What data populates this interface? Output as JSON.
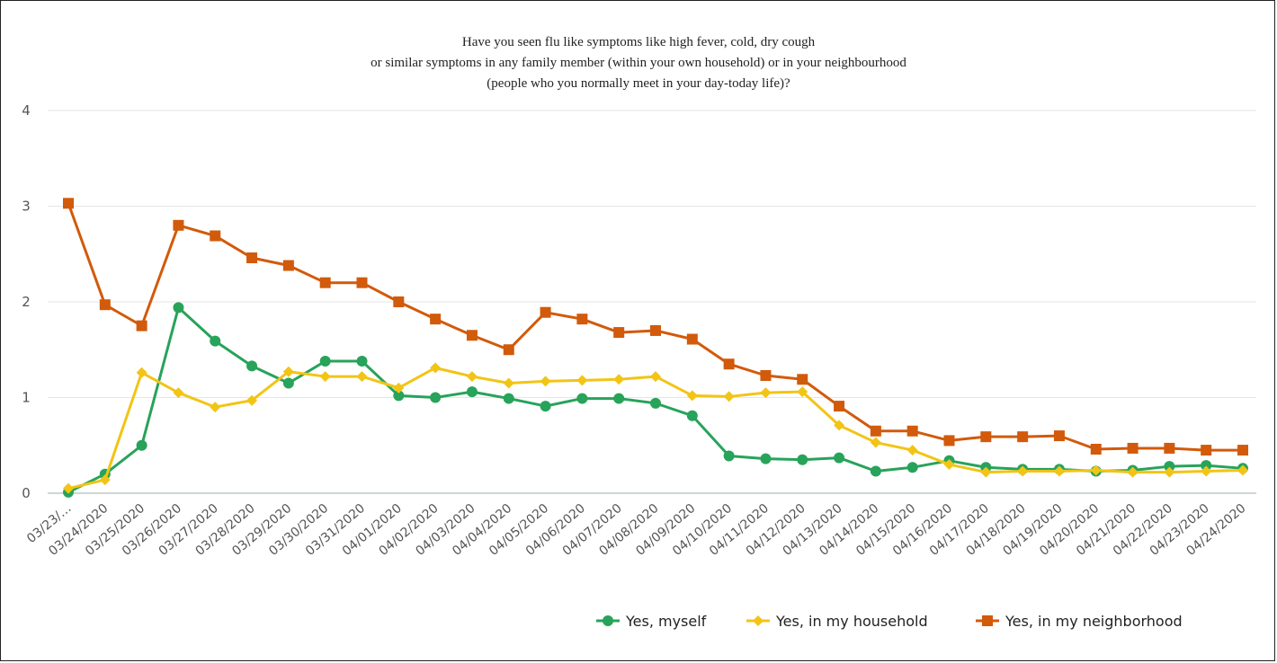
{
  "chart_data": {
    "type": "line",
    "title": [
      "Have you seen flu like symptoms like high fever, cold, dry cough",
      "or similar symptoms in any family member (within your own household) or in your neighbourhood",
      "(people who you normally meet in your day-today life)?"
    ],
    "categories": [
      "03/23/…",
      "03/24/2020",
      "03/25/2020",
      "03/26/2020",
      "03/27/2020",
      "03/28/2020",
      "03/29/2020",
      "03/30/2020",
      "03/31/2020",
      "04/01/2020",
      "04/02/2020",
      "04/03/2020",
      "04/04/2020",
      "04/05/2020",
      "04/06/2020",
      "04/07/2020",
      "04/08/2020",
      "04/09/2020",
      "04/10/2020",
      "04/11/2020",
      "04/12/2020",
      "04/13/2020",
      "04/14/2020",
      "04/15/2020",
      "04/16/2020",
      "04/17/2020",
      "04/18/2020",
      "04/19/2020",
      "04/20/2020",
      "04/21/2020",
      "04/22/2020",
      "04/23/2020",
      "04/24/2020"
    ],
    "yticks": [
      "0",
      "1",
      "2",
      "3",
      "4"
    ],
    "ylim": [
      0,
      4
    ],
    "grid": true,
    "legend_position": "bottom-right",
    "series": [
      {
        "name": "Yes, myself",
        "color": "#27a35a",
        "marker": "circle",
        "values": [
          0.01,
          0.2,
          0.5,
          1.94,
          1.59,
          1.33,
          1.15,
          1.38,
          1.38,
          1.02,
          1.0,
          1.06,
          0.99,
          0.91,
          0.99,
          0.99,
          0.94,
          0.81,
          0.39,
          0.36,
          0.35,
          0.37,
          0.23,
          0.27,
          0.34,
          0.27,
          0.25,
          0.25,
          0.23,
          0.24,
          0.28,
          0.29,
          0.26
        ]
      },
      {
        "name": "Yes, in my household",
        "color": "#f2c416",
        "marker": "diamond",
        "values": [
          0.05,
          0.14,
          1.26,
          1.05,
          0.9,
          0.97,
          1.27,
          1.22,
          1.22,
          1.1,
          1.31,
          1.22,
          1.15,
          1.17,
          1.18,
          1.19,
          1.22,
          1.02,
          1.01,
          1.05,
          1.06,
          0.71,
          0.53,
          0.45,
          0.3,
          0.22,
          0.23,
          0.23,
          0.24,
          0.22,
          0.22,
          0.23,
          0.24
        ]
      },
      {
        "name": "Yes, in my neighborhood",
        "color": "#d25a0b",
        "marker": "square",
        "values": [
          3.03,
          1.97,
          1.75,
          2.8,
          2.69,
          2.46,
          2.38,
          2.2,
          2.2,
          2.0,
          1.82,
          1.65,
          1.5,
          1.89,
          1.82,
          1.68,
          1.7,
          1.61,
          1.35,
          1.23,
          1.19,
          0.91,
          0.65,
          0.65,
          0.55,
          0.59,
          0.59,
          0.6,
          0.46,
          0.47,
          0.47,
          0.45,
          0.45
        ]
      }
    ]
  }
}
